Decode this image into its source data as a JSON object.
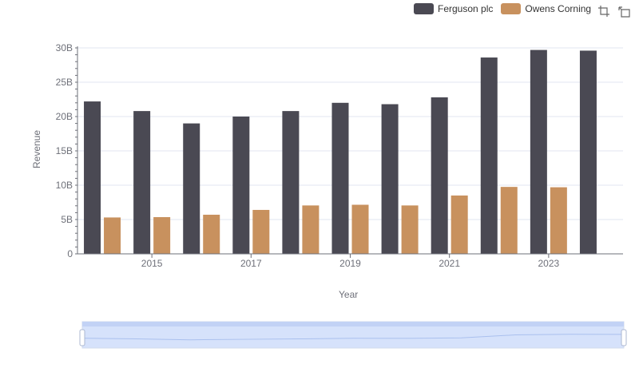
{
  "legend": {
    "items": [
      {
        "label": "Ferguson plc",
        "color": "#4a4953"
      },
      {
        "label": "Owens Corning",
        "color": "#c8915e"
      }
    ]
  },
  "toolbox": {
    "icons": [
      "zoom-select-icon",
      "zoom-reset-icon"
    ]
  },
  "chart_data": {
    "type": "bar",
    "x": [
      2014,
      2015,
      2016,
      2017,
      2018,
      2019,
      2020,
      2021,
      2022,
      2023,
      2024
    ],
    "x_tick_labels": [
      "2015",
      "2017",
      "2019",
      "2021",
      "2023"
    ],
    "series": [
      {
        "name": "Ferguson plc",
        "color": "#4a4953",
        "values": [
          22.2,
          20.8,
          19.0,
          20.0,
          20.8,
          22.0,
          21.8,
          22.8,
          28.6,
          29.7,
          29.6
        ]
      },
      {
        "name": "Owens Corning",
        "color": "#c8915e",
        "values": [
          5.3,
          5.35,
          5.7,
          6.4,
          7.05,
          7.15,
          7.05,
          8.5,
          9.75,
          9.7,
          null
        ]
      }
    ],
    "xlabel": "Year",
    "ylabel": "Revenue",
    "ylim": [
      0,
      30
    ],
    "y_tick_labels": [
      "0",
      "5B",
      "10B",
      "15B",
      "20B",
      "25B",
      "30B"
    ],
    "grid": true,
    "legend_position": "top-right"
  },
  "datazoom": {
    "start_percent": 0,
    "end_percent": 100,
    "fill_color": "#d6e2fb"
  }
}
